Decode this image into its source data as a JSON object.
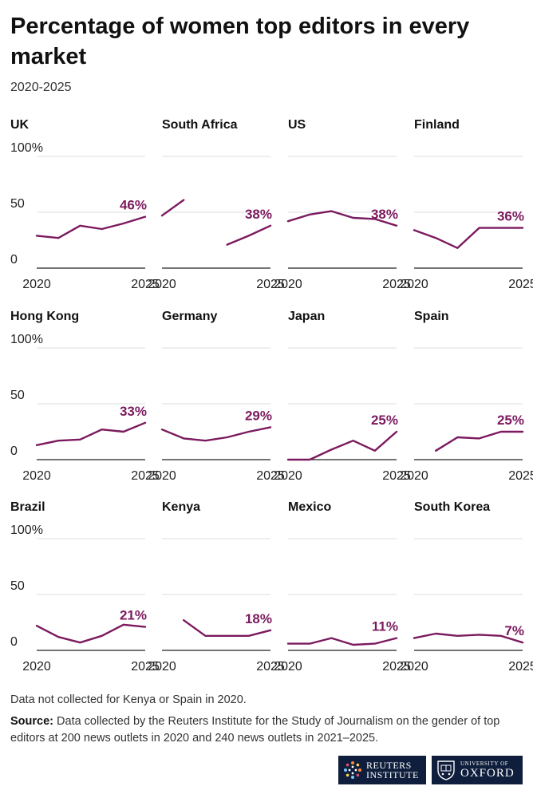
{
  "title": "Percentage of women top editors in every market",
  "subtitle": "2020-2025",
  "note": "Data not collected for Kenya or Spain in 2020.",
  "source_label": "Source:",
  "source_text": " Data collected by the Reuters Institute for the Study of Journalism on the gender of top editors at 200 news outlets in 2020 and 240 news outlets in 2021–2025.",
  "logos": {
    "reuters_line1": "REUTERS",
    "reuters_line2": "INSTITUTE",
    "oxford_line1": "UNIVERSITY OF",
    "oxford_line2": "OXFORD"
  },
  "colors": {
    "line": "#7b1a5e",
    "grid": "#dddddd",
    "baseline": "#222222"
  },
  "chart_data": {
    "type": "line",
    "small_multiples": true,
    "x": [
      2020,
      2021,
      2022,
      2023,
      2024,
      2025
    ],
    "x_ticks": [
      "2020",
      "2025"
    ],
    "y_ticks": [
      "100%",
      "50",
      "0"
    ],
    "ylim": [
      0,
      100
    ],
    "series": [
      {
        "name": "UK",
        "values": [
          29,
          27,
          38,
          35,
          40,
          46
        ],
        "label": "46%"
      },
      {
        "name": "South Africa",
        "values": [
          47,
          61,
          null,
          21,
          29,
          38
        ],
        "label": "38%"
      },
      {
        "name": "US",
        "values": [
          42,
          48,
          51,
          45,
          44,
          38
        ],
        "label": "38%"
      },
      {
        "name": "Finland",
        "values": [
          34,
          27,
          18,
          36,
          36,
          36
        ],
        "label": "36%"
      },
      {
        "name": "Hong Kong",
        "values": [
          13,
          17,
          18,
          27,
          25,
          33
        ],
        "label": "33%"
      },
      {
        "name": "Germany",
        "values": [
          27,
          19,
          17,
          20,
          25,
          29
        ],
        "label": "29%"
      },
      {
        "name": "Japan",
        "values": [
          0,
          0,
          9,
          17,
          8,
          25
        ],
        "label": "25%"
      },
      {
        "name": "Spain",
        "values": [
          null,
          8,
          20,
          19,
          25,
          25
        ],
        "label": "25%"
      },
      {
        "name": "Brazil",
        "values": [
          22,
          12,
          7,
          13,
          23,
          21
        ],
        "label": "21%"
      },
      {
        "name": "Kenya",
        "values": [
          null,
          27,
          13,
          13,
          13,
          18
        ],
        "label": "18%"
      },
      {
        "name": "Mexico",
        "values": [
          6,
          6,
          11,
          5,
          6,
          11
        ],
        "label": "11%"
      },
      {
        "name": "South Korea",
        "values": [
          11,
          15,
          13,
          14,
          13,
          7
        ],
        "label": "7%"
      }
    ]
  }
}
